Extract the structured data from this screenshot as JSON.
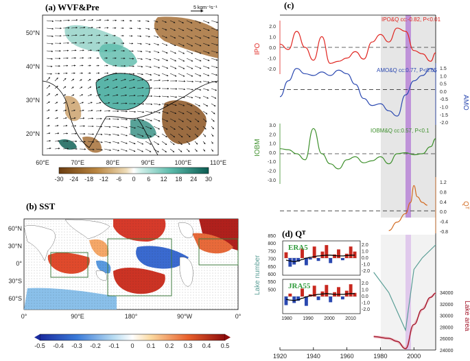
{
  "colors": {
    "ipo": "#e0241f",
    "amo": "#2a48b0",
    "iobm": "#3c8f2a",
    "qt": "#d2691e",
    "lake_number": "#5a9e96",
    "lake_area": "#a4162a",
    "shade": "#e6e6e6",
    "purple": "#c8a0dc",
    "purple_strong": "#b57ed6",
    "precip_wet": "#3da89a",
    "precip_dry": "#a0662a",
    "sst_warm": "#c8281f",
    "sst_cool": "#2a5ac8"
  },
  "panel_a": {
    "label": "(a) WVF&Pre",
    "ref_vector": "5 kgm⁻¹s⁻¹",
    "lat_ticks": [
      "50°N",
      "40°N",
      "30°N",
      "20°N"
    ],
    "lon_ticks": [
      "60°E",
      "70°E",
      "80°E",
      "90°E",
      "100°E",
      "110°E"
    ],
    "colorbar": [
      "-30",
      "-24",
      "-18",
      "-12",
      "-6",
      "0",
      "6",
      "12",
      "18",
      "24",
      "30"
    ]
  },
  "panel_b": {
    "label": "(b) SST",
    "lat_ticks": [
      "60°N",
      "30°N",
      "0°",
      "30°S",
      "60°S"
    ],
    "lon_ticks": [
      "0°",
      "90°E",
      "180°",
      "90°W",
      "0°"
    ],
    "colorbar": [
      "-0.5",
      "-0.4",
      "-0.3",
      "-0.2",
      "-0.1",
      "0",
      "0.1",
      "0.2",
      "0.3",
      "0.4",
      "0.5"
    ]
  },
  "panel_c": {
    "label": "(c)",
    "ipo_axis": "IPO",
    "amo_axis": "AMO",
    "iobm_axis": "IOBM",
    "qt_axis": "Qᵀ",
    "ipo_ticks": [
      "2.0",
      "1.0",
      "0.0",
      "-1.0",
      "-2.0"
    ],
    "amo_ticks": [
      "1.5",
      "1.0",
      "0.5",
      "0.0",
      "-0.5",
      "-1.0",
      "-1.5",
      "-2.0"
    ],
    "iobm_ticks": [
      "3.0",
      "2.0",
      "1.0",
      "0.0",
      "-1.0",
      "-2.0",
      "-3.0"
    ],
    "qt_ticks": [
      "1.2",
      "0.8",
      "0.4",
      "0.0",
      "-0.4",
      "-0.8"
    ],
    "ipo_note": "IPO&Q cc:-0.82, P<0.01",
    "amo_note": "AMO&Q cc:0.77, P<0.05",
    "iobm_note": "IOBM&Q cc:0.57, P<0.1"
  },
  "panel_d": {
    "label": "(d) Qᵀ",
    "lake_number_axis": "Lake number",
    "lake_area_axis": "Lake area",
    "lake_number_ticks": [
      "850",
      "800",
      "750",
      "700",
      "650",
      "600",
      "550",
      "500"
    ],
    "lake_area_ticks": [
      "34000",
      "32000",
      "30000",
      "28000",
      "26000",
      "24000"
    ],
    "inset_top": "ERA5",
    "inset_bottom": "JRA55",
    "inset_right_ticks": [
      "2.0",
      "1.0",
      "0.0",
      "-1.0",
      "-2.0"
    ],
    "inset_x_ticks": [
      "1980",
      "1990",
      "2000",
      "2010"
    ]
  },
  "x_axis_ticks": [
    "1920",
    "1940",
    "1960",
    "1980",
    "2000"
  ],
  "chart_data": [
    {
      "type": "line",
      "title": "IPO",
      "x": [
        1920,
        1925,
        1930,
        1935,
        1940,
        1945,
        1950,
        1955,
        1960,
        1965,
        1970,
        1975,
        1980,
        1985,
        1990,
        1995,
        2000,
        2005,
        2010,
        2013
      ],
      "values": [
        0.3,
        -0.2,
        1.5,
        0.0,
        -1.2,
        1.0,
        -1.5,
        -1.3,
        -1.0,
        -0.4,
        -1.1,
        0.5,
        1.2,
        0.5,
        1.8,
        1.5,
        -0.3,
        -0.6,
        -1.3,
        -0.5
      ],
      "ylim": [
        -2.5,
        2.5
      ],
      "note": "IPO&Q cc:-0.82, P<0.01"
    },
    {
      "type": "line",
      "title": "AMO",
      "x": [
        1920,
        1925,
        1930,
        1935,
        1940,
        1945,
        1950,
        1955,
        1960,
        1965,
        1970,
        1975,
        1980,
        1985,
        1990,
        1995,
        2000,
        2005,
        2010,
        2013
      ],
      "values": [
        -0.4,
        0.5,
        1.2,
        0.9,
        0.8,
        1.0,
        0.8,
        1.1,
        0.9,
        0.3,
        -0.5,
        -0.9,
        -0.8,
        -1.2,
        -1.5,
        -0.3,
        0.5,
        0.8,
        1.2,
        1.0
      ],
      "ylim": [
        -2.0,
        1.5
      ],
      "note": "AMO&Q cc:0.77, P<0.05"
    },
    {
      "type": "line",
      "title": "IOBM",
      "x": [
        1920,
        1925,
        1930,
        1935,
        1940,
        1945,
        1950,
        1955,
        1960,
        1965,
        1970,
        1975,
        1980,
        1985,
        1990,
        1995,
        2000,
        2005,
        2010,
        2013
      ],
      "values": [
        0.5,
        0.4,
        0.0,
        -0.6,
        2.5,
        0.0,
        -1.0,
        -1.5,
        -0.6,
        -0.3,
        -0.9,
        -0.7,
        -0.3,
        -1.0,
        0.0,
        0.1,
        -0.1,
        0.0,
        0.7,
        1.5
      ],
      "ylim": [
        -3.0,
        3.0
      ],
      "note": "IOBM&Q cc:0.57, P<0.1"
    },
    {
      "type": "line",
      "title": "QT",
      "x": [
        1985,
        1990,
        1995,
        1998,
        2000,
        2002,
        2005,
        2008
      ],
      "values": [
        -0.7,
        -0.4,
        -0.1,
        0.3,
        0.9,
        0.5,
        0.3,
        0.2
      ],
      "ylim": [
        -0.8,
        1.2
      ]
    },
    {
      "type": "line",
      "title": "Lake number",
      "x": [
        1976,
        1985,
        1995,
        2000,
        2005,
        2013
      ],
      "values": [
        720,
        650,
        520,
        730,
        770,
        815
      ],
      "ylim": [
        475,
        850
      ]
    },
    {
      "type": "area",
      "title": "Lake area",
      "x": [
        1976,
        1985,
        1990,
        1995,
        2000,
        2005,
        2010,
        2013
      ],
      "values": [
        26000,
        25700,
        25200,
        24000,
        28000,
        30500,
        32500,
        33200
      ],
      "ylim": [
        24000,
        34000
      ]
    },
    {
      "type": "bar",
      "title": "ERA5 inset",
      "x": [
        1979,
        1981,
        1983,
        1985,
        1987,
        1989,
        1991,
        1993,
        1995,
        1997,
        1999,
        2001,
        2003,
        2005,
        2007,
        2009,
        2011,
        2013
      ],
      "values": [
        0.8,
        -1.2,
        -0.9,
        -0.5,
        1.3,
        -1.0,
        -0.2,
        1.6,
        -0.4,
        0.9,
        1.8,
        -0.7,
        0.5,
        1.2,
        -0.3,
        0.6,
        1.6,
        0.9
      ],
      "trend": [
        -0.3,
        -0.4,
        -0.5,
        -0.4,
        -0.2,
        0.0,
        0.1,
        0.2,
        0.3,
        0.35,
        0.4,
        0.4,
        0.35,
        0.3,
        0.3,
        0.35,
        0.4,
        0.4
      ],
      "ylim": [
        -2.0,
        2.0
      ]
    },
    {
      "type": "bar",
      "title": "JRA55 inset",
      "x": [
        1979,
        1981,
        1983,
        1985,
        1987,
        1989,
        1991,
        1993,
        1995,
        1997,
        1999,
        2001,
        2003,
        2005,
        2007,
        2009,
        2011,
        2013
      ],
      "values": [
        -1.2,
        0.4,
        -0.9,
        -0.6,
        1.1,
        -1.3,
        0.3,
        1.5,
        -0.5,
        0.7,
        1.6,
        -0.8,
        0.6,
        1.3,
        -0.4,
        0.8,
        1.7,
        0.5
      ],
      "trend": [
        -0.4,
        -0.5,
        -0.55,
        -0.45,
        -0.25,
        -0.05,
        0.1,
        0.2,
        0.3,
        0.35,
        0.4,
        0.35,
        0.3,
        0.3,
        0.3,
        0.35,
        0.4,
        0.4
      ],
      "ylim": [
        -2.0,
        2.0
      ]
    }
  ]
}
